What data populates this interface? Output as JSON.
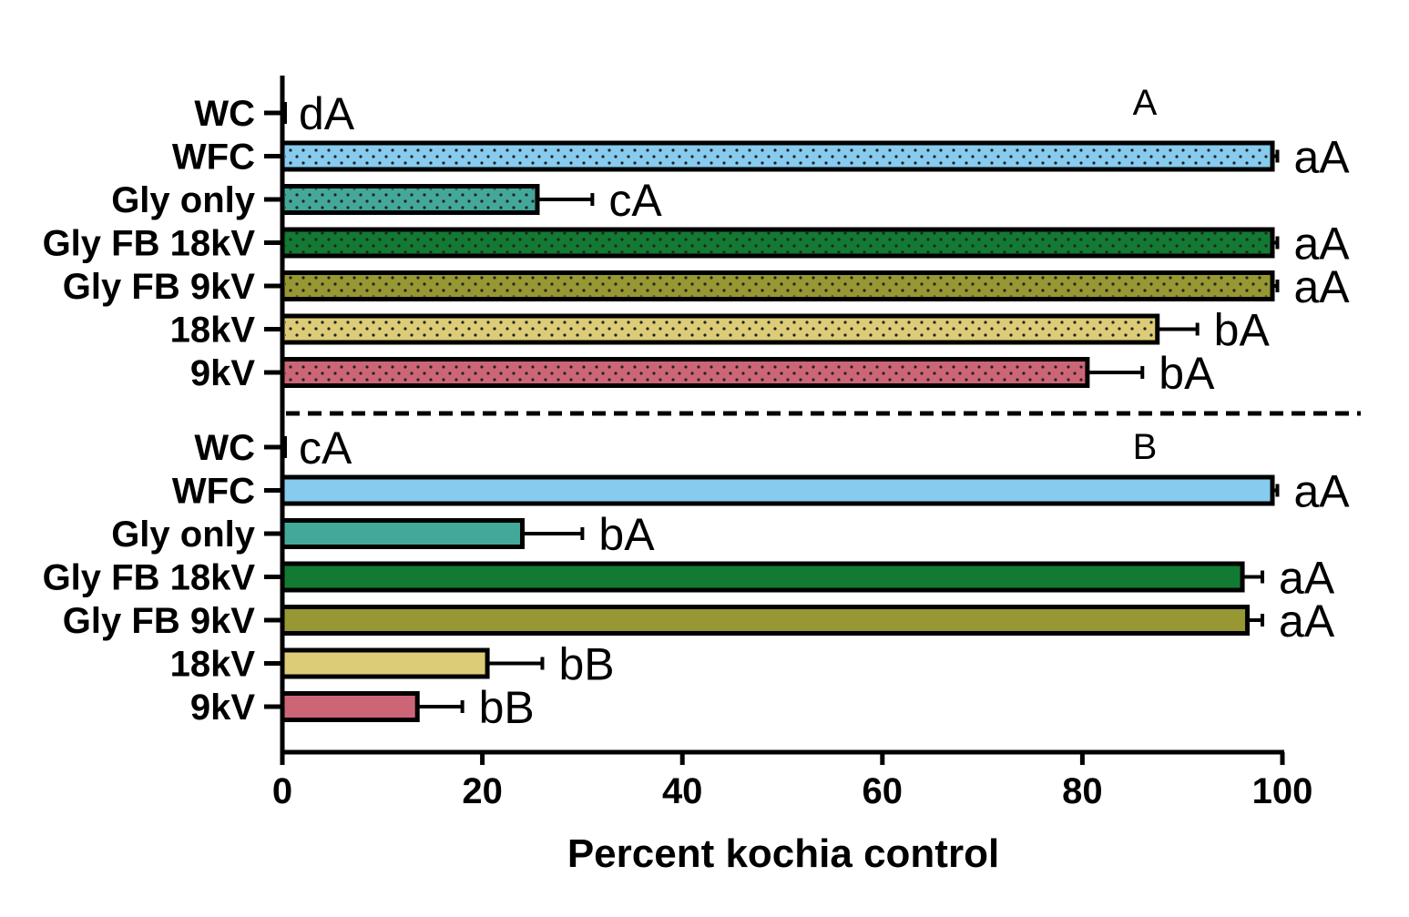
{
  "chart_data": {
    "type": "bar",
    "orientation": "horizontal",
    "xlabel": "Percent kochia control",
    "xlim": [
      0,
      100
    ],
    "xticks": [
      "0",
      "20",
      "40",
      "60",
      "80",
      "100"
    ],
    "panels": [
      {
        "label": "A",
        "pattern": "dotted",
        "categories": [
          "WC",
          "WFC",
          "Gly only",
          "Gly FB 18kV",
          "Gly FB 9kV",
          "18kV",
          "9kV"
        ],
        "values": [
          0,
          99,
          25.5,
          99,
          99,
          87.5,
          80.5
        ],
        "errors": [
          0,
          0.5,
          5.5,
          0.5,
          0.5,
          4,
          5.5
        ],
        "significance": [
          "dA",
          "aA",
          "cA",
          "aA",
          "aA",
          "bA",
          "bA"
        ]
      },
      {
        "label": "B",
        "pattern": "solid",
        "categories": [
          "WC",
          "WFC",
          "Gly only",
          "Gly FB 18kV",
          "Gly FB 9kV",
          "18kV",
          "9kV"
        ],
        "values": [
          0,
          99,
          24,
          96,
          96.5,
          20.5,
          13.5
        ],
        "errors": [
          0,
          0.5,
          6,
          2,
          1.5,
          5.5,
          4.5
        ],
        "significance": [
          "cA",
          "aA",
          "bA",
          "aA",
          "aA",
          "bB",
          "bB"
        ]
      }
    ],
    "colors": [
      "#000000",
      "#87cbef",
      "#43a899",
      "#127a33",
      "#979733",
      "#ddcc77",
      "#cc6677"
    ],
    "divider": "dashed"
  }
}
